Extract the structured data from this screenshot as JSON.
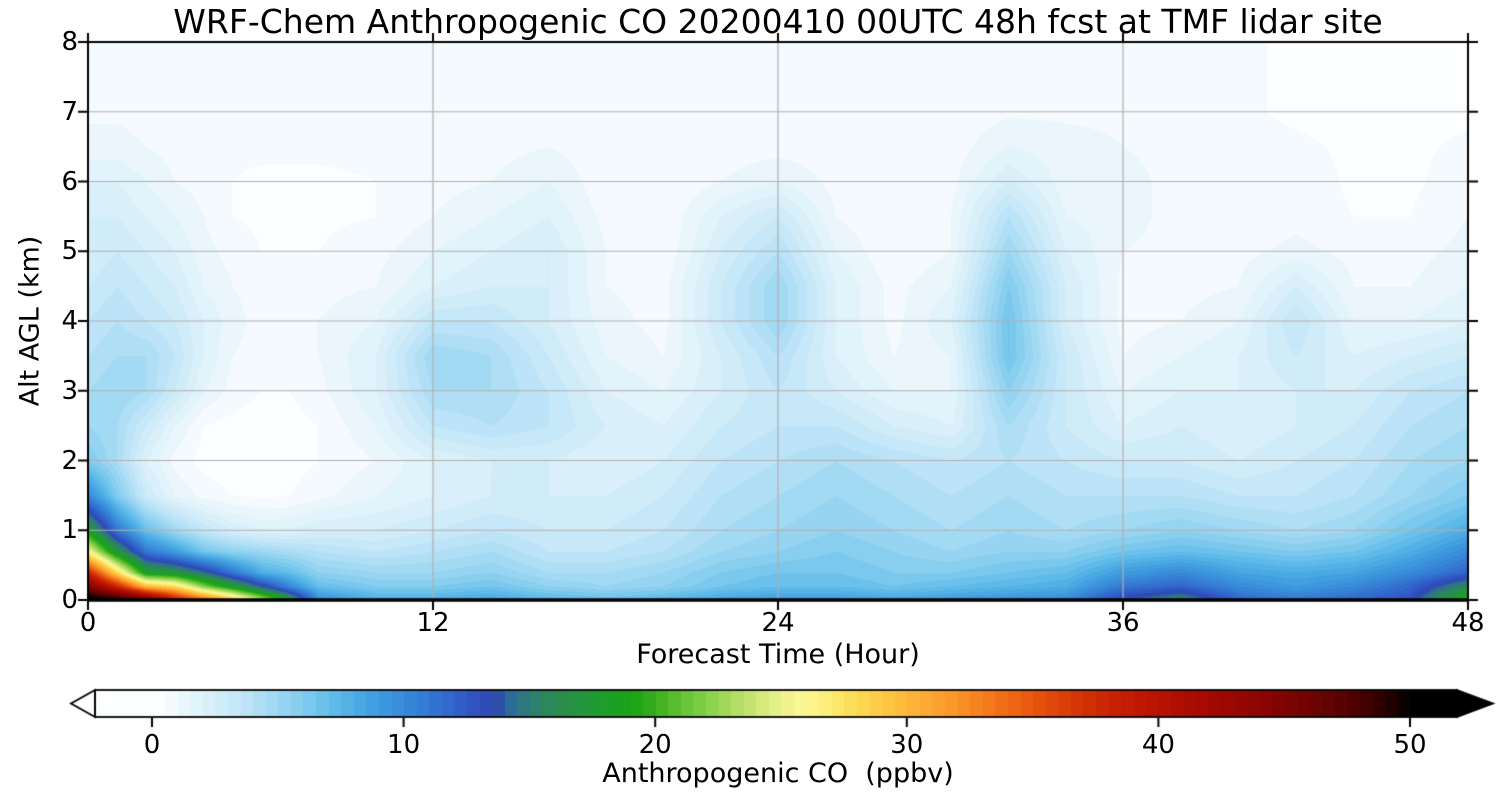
{
  "chart_data": {
    "type": "heatmap",
    "title": "WRF-Chem Anthropogenic CO 20200410 00UTC 48h fcst at TMF lidar site",
    "xlabel": "Forecast Time (Hour)",
    "ylabel": "Alt AGL (km)",
    "xlim": [
      0,
      48
    ],
    "ylim": [
      0,
      8
    ],
    "x_ticks": [
      0,
      12,
      24,
      36,
      48
    ],
    "y_ticks": [
      0,
      1,
      2,
      3,
      4,
      5,
      6,
      7,
      8
    ],
    "grid": true,
    "contour_interval": 0.5,
    "x": [
      0,
      1,
      2,
      3,
      4,
      5,
      6,
      7,
      8,
      10,
      12,
      14,
      16,
      18,
      20,
      22,
      24,
      26,
      28,
      30,
      32,
      34,
      36,
      38,
      40,
      42,
      44,
      46,
      48
    ],
    "y": [
      0,
      0.2,
      0.4,
      0.7,
      1.0,
      1.5,
      2.0,
      2.5,
      3.0,
      3.5,
      4.0,
      4.5,
      5.0,
      5.5,
      6.0,
      6.5,
      7.0,
      7.5,
      8.0
    ],
    "values": [
      [
        52,
        51,
        48,
        40,
        35,
        30,
        24,
        18,
        10,
        8,
        8,
        8.5,
        7.5,
        7,
        7.5,
        8.5,
        9,
        9,
        8.5,
        9,
        9.5,
        10,
        14,
        16,
        12,
        11,
        12,
        13,
        20
      ],
      [
        45,
        38,
        30,
        28,
        22,
        18,
        14,
        10,
        7,
        6,
        6,
        6.5,
        5.5,
        5,
        5.5,
        6.5,
        7,
        7,
        6.5,
        7,
        7.5,
        8,
        11,
        12,
        10,
        9,
        10,
        12,
        16
      ],
      [
        38,
        28,
        18,
        17,
        14.5,
        11,
        8,
        7,
        5.5,
        5,
        5,
        5.5,
        4.5,
        4.5,
        5,
        6,
        6.5,
        6.5,
        6,
        6,
        6.5,
        7,
        9,
        10,
        8.5,
        8,
        8.5,
        10,
        12
      ],
      [
        26,
        17,
        11,
        9,
        6.5,
        5.5,
        5,
        4.5,
        4,
        3.5,
        4,
        4.5,
        3.5,
        3.5,
        4,
        5,
        5.5,
        6,
        5.5,
        5,
        5.5,
        5.5,
        6.5,
        7,
        6.5,
        6,
        6.5,
        8,
        10
      ],
      [
        18,
        11,
        7,
        5,
        3.5,
        2.5,
        2,
        2,
        2.5,
        2.5,
        3,
        3.5,
        3,
        3,
        3.5,
        4.5,
        5,
        5.5,
        5,
        4.5,
        5,
        4.5,
        5,
        5.5,
        5,
        4.5,
        5,
        6.5,
        8
      ],
      [
        10,
        6,
        3,
        1.5,
        0.8,
        0.5,
        0.4,
        0.5,
        0.8,
        1.5,
        2,
        2.5,
        2.5,
        2.5,
        3,
        4,
        4.5,
        5,
        4.5,
        4,
        4.5,
        4,
        4,
        4,
        3.5,
        3.5,
        4,
        5,
        6
      ],
      [
        6,
        4.5,
        2,
        0.8,
        0.3,
        0.2,
        0.2,
        0.3,
        0.5,
        1,
        2,
        2.5,
        2.5,
        2,
        2.5,
        3.5,
        4,
        4.5,
        4,
        3.5,
        4,
        3.5,
        3,
        3,
        2.5,
        3,
        3.5,
        4.5,
        5
      ],
      [
        5,
        4.5,
        3,
        1.5,
        0.5,
        0.3,
        0.2,
        0.3,
        0.5,
        1.5,
        3.5,
        4,
        3.5,
        2.5,
        2,
        3,
        3.5,
        3.5,
        2.5,
        2,
        4.5,
        3,
        2,
        2.5,
        2,
        2.5,
        3,
        4,
        4.5
      ],
      [
        4.5,
        5,
        4.5,
        3,
        1.5,
        0.8,
        0.5,
        0.5,
        0.8,
        2,
        4.5,
        4.5,
        3.5,
        2,
        1.5,
        2.5,
        3.5,
        2.5,
        1.5,
        1.5,
        5.5,
        3,
        1.5,
        2,
        2,
        2.5,
        2.5,
        3.5,
        4
      ],
      [
        4,
        4.5,
        4.5,
        3.5,
        2,
        1,
        0.8,
        0.8,
        1,
        2,
        5,
        4.5,
        3,
        1.5,
        1,
        2.5,
        4,
        2,
        1,
        1.5,
        6.5,
        3,
        1,
        1.5,
        2,
        3,
        2,
        2.5,
        3
      ],
      [
        3.5,
        4,
        3.5,
        3,
        2,
        1.2,
        0.8,
        0.8,
        1,
        1.5,
        3.5,
        3.5,
        2.5,
        1.2,
        0.8,
        3,
        5,
        2,
        0.8,
        2,
        6.5,
        2.5,
        0.8,
        1,
        1.5,
        3.5,
        1.5,
        1.5,
        2
      ],
      [
        3,
        3.5,
        3,
        2.5,
        1.5,
        1,
        0.8,
        0.8,
        0.8,
        1,
        2,
        2.5,
        2.5,
        1,
        0.8,
        3,
        5,
        2,
        0.8,
        1.5,
        6,
        2.5,
        0.8,
        0.8,
        1,
        2.5,
        1,
        1,
        1.5
      ],
      [
        2.5,
        3,
        2.5,
        2,
        1.2,
        0.8,
        0.5,
        0.5,
        0.5,
        0.8,
        1.5,
        2,
        2.5,
        1,
        0.5,
        2.5,
        4,
        1.5,
        0.5,
        1,
        5,
        2,
        1,
        0.8,
        0.8,
        1.2,
        0.8,
        0.8,
        1.2
      ],
      [
        2.5,
        2.5,
        2,
        1.5,
        1,
        0.5,
        0.4,
        0.4,
        0.4,
        0.5,
        1,
        1.5,
        2,
        0.8,
        0.5,
        2,
        3,
        1,
        0.5,
        1,
        4,
        1.5,
        1.2,
        0.8,
        0.5,
        0.8,
        0.5,
        0.5,
        1
      ],
      [
        2,
        2,
        1.5,
        1,
        0.8,
        0.5,
        0.4,
        0.4,
        0.4,
        0.5,
        0.8,
        1,
        1.5,
        0.6,
        0.5,
        1,
        1.5,
        0.8,
        0.5,
        0.8,
        2.5,
        1.2,
        1.2,
        0.8,
        0.5,
        0.8,
        0.4,
        0.4,
        0.8
      ],
      [
        1.2,
        1.2,
        1,
        0.8,
        0.6,
        0.6,
        0.6,
        0.6,
        0.6,
        0.6,
        0.7,
        0.8,
        1,
        0.7,
        0.6,
        0.7,
        0.8,
        0.7,
        0.6,
        0.7,
        1.5,
        1.2,
        1,
        0.8,
        0.7,
        0.6,
        0.4,
        0.4,
        0.6
      ],
      [
        0.9,
        0.9,
        0.8,
        0.7,
        0.6,
        0.6,
        0.6,
        0.6,
        0.6,
        0.6,
        0.6,
        0.7,
        0.8,
        0.6,
        0.6,
        0.6,
        0.7,
        0.6,
        0.6,
        0.6,
        0.9,
        0.9,
        0.9,
        0.7,
        0.6,
        0.4,
        0.3,
        0.3,
        0.4
      ],
      [
        0.8,
        0.8,
        0.7,
        0.6,
        0.6,
        0.6,
        0.6,
        0.6,
        0.6,
        0.6,
        0.6,
        0.6,
        0.7,
        0.6,
        0.6,
        0.6,
        0.7,
        0.6,
        0.6,
        0.6,
        0.8,
        0.8,
        0.8,
        0.6,
        0.6,
        0.4,
        0.3,
        0.3,
        0.4
      ],
      [
        0.7,
        0.7,
        0.7,
        0.6,
        0.6,
        0.6,
        0.6,
        0.6,
        0.6,
        0.6,
        0.6,
        0.6,
        0.7,
        0.6,
        0.6,
        0.6,
        0.7,
        0.6,
        0.6,
        0.6,
        0.8,
        0.8,
        0.7,
        0.6,
        0.6,
        0.4,
        0.3,
        0.3,
        0.4
      ]
    ],
    "colorbar": {
      "label": "Anthropogenic CO  (ppbv)",
      "ticks": [
        0,
        10,
        20,
        30,
        40,
        50
      ],
      "range": [
        0,
        50
      ],
      "extend": "both"
    },
    "colormap": [
      {
        "v": 0,
        "c": "#ffffff"
      },
      {
        "v": 0.5,
        "c": "#f9fcfe"
      },
      {
        "v": 1,
        "c": "#eef7fc"
      },
      {
        "v": 2,
        "c": "#ddf1fa"
      },
      {
        "v": 3,
        "c": "#cdeaf8"
      },
      {
        "v": 4,
        "c": "#b6e1f6"
      },
      {
        "v": 5,
        "c": "#9dd7f2"
      },
      {
        "v": 6,
        "c": "#81cbee"
      },
      {
        "v": 7,
        "c": "#63beea"
      },
      {
        "v": 8,
        "c": "#4dace4"
      },
      {
        "v": 9,
        "c": "#3f9bde"
      },
      {
        "v": 10,
        "c": "#3889d8"
      },
      {
        "v": 11,
        "c": "#3477d1"
      },
      {
        "v": 12,
        "c": "#3263ca"
      },
      {
        "v": 13,
        "c": "#2f50c0"
      },
      {
        "v": 13.6,
        "c": "#2e47b0"
      },
      {
        "v": 14.3,
        "c": "#2d6f96"
      },
      {
        "v": 15,
        "c": "#2d7d72"
      },
      {
        "v": 16,
        "c": "#2b8a52"
      },
      {
        "v": 17,
        "c": "#25943e"
      },
      {
        "v": 18,
        "c": "#1d9e2a"
      },
      {
        "v": 19,
        "c": "#16a416"
      },
      {
        "v": 20,
        "c": "#3aad1e"
      },
      {
        "v": 21,
        "c": "#62c133"
      },
      {
        "v": 22,
        "c": "#85cf48"
      },
      {
        "v": 23,
        "c": "#abdb5f"
      },
      {
        "v": 24,
        "c": "#cde678"
      },
      {
        "v": 25,
        "c": "#ebf28c"
      },
      {
        "v": 26,
        "c": "#fdf795"
      },
      {
        "v": 27,
        "c": "#fdeb72"
      },
      {
        "v": 28,
        "c": "#fdd952"
      },
      {
        "v": 29,
        "c": "#fec946"
      },
      {
        "v": 30,
        "c": "#feb83a"
      },
      {
        "v": 31,
        "c": "#fda531"
      },
      {
        "v": 32,
        "c": "#fb9227"
      },
      {
        "v": 33,
        "c": "#f67e1d"
      },
      {
        "v": 34,
        "c": "#ef6a15"
      },
      {
        "v": 35,
        "c": "#e6560e"
      },
      {
        "v": 36,
        "c": "#dc4308"
      },
      {
        "v": 37,
        "c": "#d23105"
      },
      {
        "v": 38,
        "c": "#c92303"
      },
      {
        "v": 39,
        "c": "#c01a02"
      },
      {
        "v": 40,
        "c": "#b61302"
      },
      {
        "v": 41,
        "c": "#ad0d02"
      },
      {
        "v": 42,
        "c": "#a30902"
      },
      {
        "v": 43,
        "c": "#980701"
      },
      {
        "v": 44,
        "c": "#8c0501"
      },
      {
        "v": 45,
        "c": "#7e0401"
      },
      {
        "v": 46,
        "c": "#6f0301"
      },
      {
        "v": 47,
        "c": "#5e0201"
      },
      {
        "v": 48,
        "c": "#480101"
      },
      {
        "v": 49,
        "c": "#2c0000"
      },
      {
        "v": 50,
        "c": "#000000"
      }
    ],
    "frame_color": "#000000",
    "gridline_color": "#b0b0b0"
  }
}
